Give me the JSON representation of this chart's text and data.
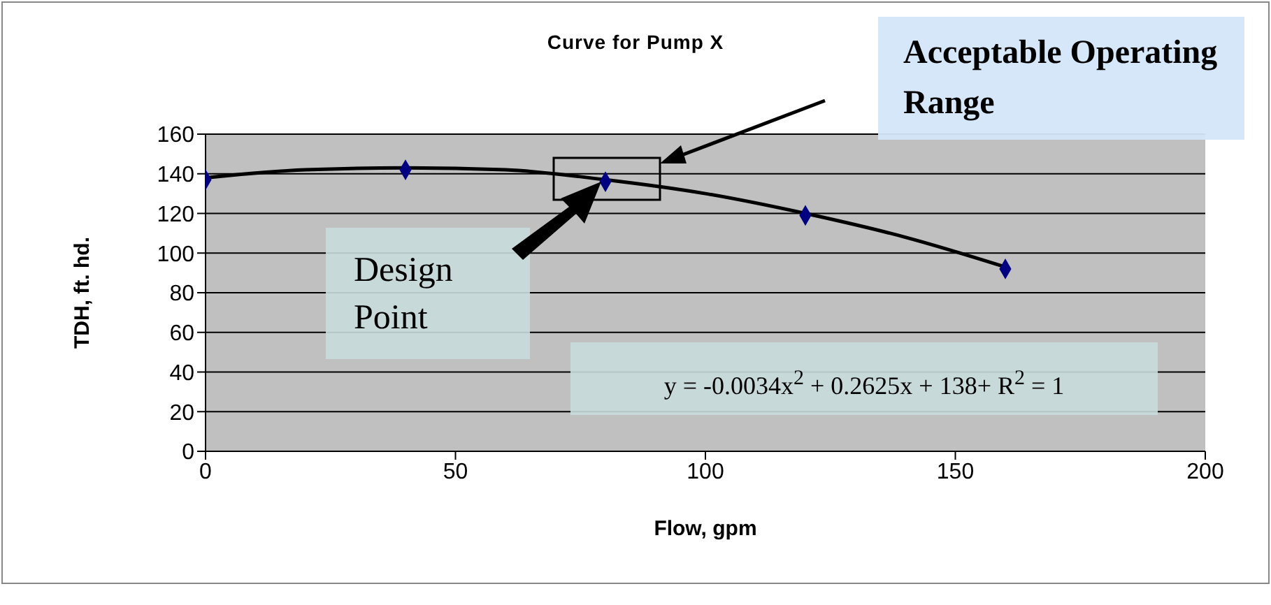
{
  "chart_data": {
    "type": "scatter",
    "title": "Curve for Pump X",
    "xlabel": "Flow, gpm",
    "ylabel": "TDH, ft. hd.",
    "xlim": [
      0,
      200
    ],
    "xticks": [
      0,
      50,
      100,
      150,
      200
    ],
    "ylim": [
      0,
      160
    ],
    "yticks": [
      0,
      20,
      40,
      60,
      80,
      100,
      120,
      140,
      160
    ],
    "grid": "y",
    "legend": false,
    "marker": "diamond",
    "series": [
      {
        "type": "scatter",
        "color": "#000080",
        "x": [
          0,
          40,
          80,
          120,
          160
        ],
        "values": [
          137,
          142,
          136,
          119,
          92
        ]
      },
      {
        "type": "line",
        "color": "#000000",
        "marker": "none",
        "x": [
          0,
          20,
          40,
          60,
          80,
          100,
          120,
          140,
          160
        ],
        "values": [
          138,
          142,
          143,
          142,
          137,
          130,
          120,
          108,
          93
        ]
      }
    ],
    "annotations": [
      "Acceptable Operating Range",
      "Design Point",
      "y = -0.0034x$^{2}$ + 0.2625x + 138+ R$^{2}$ = 1"
    ]
  }
}
